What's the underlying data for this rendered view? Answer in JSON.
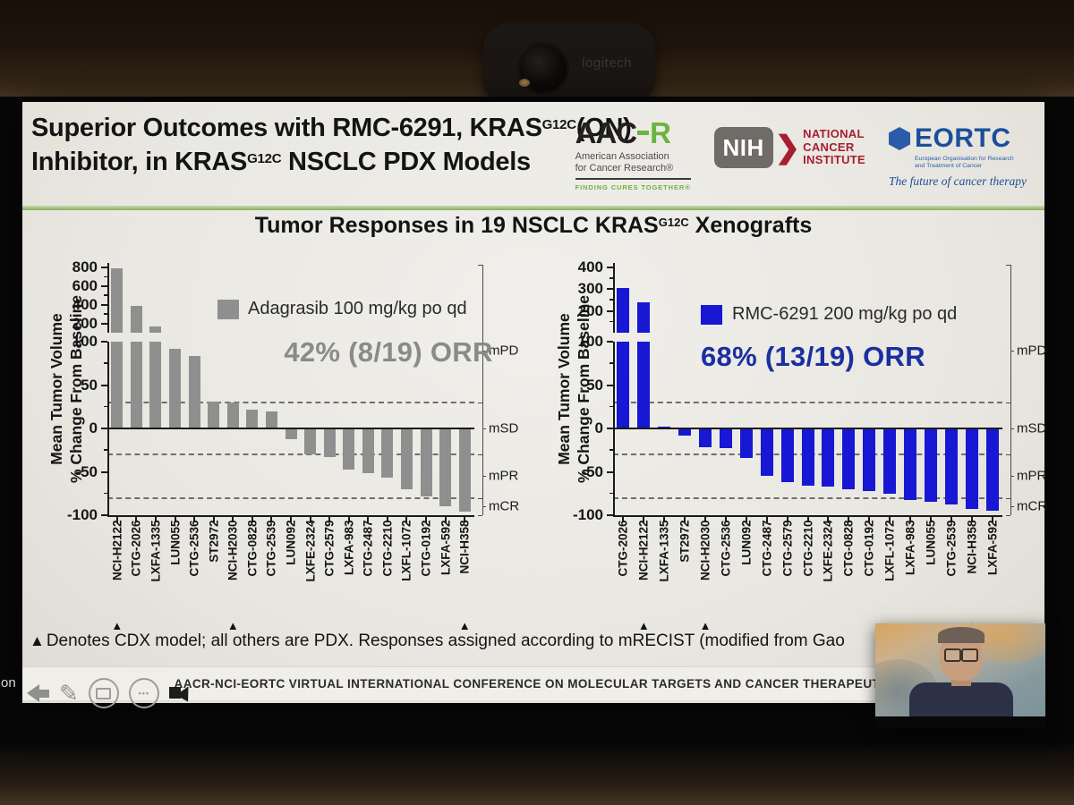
{
  "screen": {
    "edge_text": "on"
  },
  "webcam": {
    "brand": "logitech"
  },
  "slide": {
    "title": {
      "t1": "Superior Outcomes with RMC-6291, KRAS",
      "s1": "G12C",
      "t2": "(ON) Inhibitor, in KRAS",
      "s2": "G12C",
      "t3": " NSCLC PDX Models"
    },
    "chart_title": {
      "t1": "Tumor Responses in 19 NSCLC KRAS",
      "s1": "G12C",
      "t2": " Xenografts"
    },
    "footnote_marker": "▲",
    "footnote": "Denotes CDX model; all others are PDX. Responses assigned according to mRECIST (modified from Gao",
    "footer": "AACR-NCI-EORTC VIRTUAL INTERNATIONAL CONFERENCE ON MOLECULAR TARGETS AND CANCER THERAPEUTIC"
  },
  "logos": {
    "aacr": {
      "word_black": "AAC",
      "word_green": "R",
      "line1": "American Association",
      "line2": "for Cancer Research®",
      "tagline": "FINDING CURES TOGETHER®",
      "green": "#6cb33f"
    },
    "nih": {
      "abbr": "NIH",
      "chevron": "❯",
      "line1": "NATIONAL",
      "line2": "CANCER",
      "line3": "INSTITUTE",
      "red": "#a61e30"
    },
    "eortc": {
      "name": "EORTC",
      "sub1": "European Organisation for Research",
      "sub2": "and Treatment of Cancer",
      "tagline": "The future of cancer therapy",
      "blue": "#1b4f9c"
    }
  },
  "chart_data": [
    {
      "type": "bar",
      "legend": "Adagrasib 100 mg/kg po qd",
      "orr_text": "42% (8/19) ORR",
      "bar_color": "#8f8f8f",
      "orr_color": "#8a8a8a",
      "ylabel_line1": "Mean Tumor Volume",
      "ylabel_line2": "% Change From Baseline",
      "categories": [
        "NCI-H2122",
        "CTG-2026",
        "LXFA-1335",
        "LUN055",
        "CTG-2536",
        "ST2972",
        "NCI-H2030",
        "CTG-0828",
        "CTG-2539",
        "LUN092",
        "LXFE-2324",
        "CTG-2579",
        "LXFA-983",
        "CTG-2487",
        "CTG-2210",
        "LXFL-1072",
        "CTG-0192",
        "LXFA-592",
        "NCI-H358"
      ],
      "values": [
        790,
        390,
        170,
        92,
        83,
        31,
        30,
        22,
        20,
        -12,
        -30,
        -33,
        -47,
        -52,
        -57,
        -70,
        -78,
        -90,
        -96
      ],
      "cdx_indices": [
        0,
        6,
        18
      ],
      "upper_ticks": [
        800,
        600,
        400,
        200
      ],
      "minor_upper": [
        700,
        500,
        300
      ],
      "lower_ticks": [
        100,
        50,
        0,
        -50,
        -100
      ],
      "minor_lower": [
        75,
        25,
        -25,
        -75
      ],
      "upper_range": [
        100,
        850
      ],
      "ylim_lower": [
        -100,
        100
      ],
      "thresholds": [
        30,
        -30,
        -80
      ],
      "response_labels": [
        {
          "label": "mPD",
          "at": 90
        },
        {
          "label": "mSD",
          "at": 0
        },
        {
          "label": "mPR",
          "at": -55
        },
        {
          "label": "mCR",
          "at": -90
        }
      ]
    },
    {
      "type": "bar",
      "legend": "RMC-6291 200 mg/kg po qd",
      "orr_text": "68% (13/19) ORR",
      "bar_color": "#1717d4",
      "orr_color": "#1b2fa0",
      "ylabel_line1": "Mean Tumor Volume",
      "ylabel_line2": "% Change From Baseline",
      "categories": [
        "CTG-2026",
        "NCI-H2122",
        "LXFA-1335",
        "ST2972",
        "NCI-H2030",
        "CTG-2536",
        "LUN092",
        "CTG-2487",
        "CTG-2579",
        "CTG-2210",
        "LXFE-2324",
        "CTG-0828",
        "CTG-0192",
        "LXFL-1072",
        "LXFA-983",
        "LUN055",
        "CTG-2539",
        "NCI-H358",
        "LXFA-592"
      ],
      "values": [
        305,
        240,
        2,
        -8,
        -22,
        -23,
        -34,
        -55,
        -62,
        -66,
        -67,
        -70,
        -72,
        -75,
        -82,
        -85,
        -88,
        -93,
        -95
      ],
      "cdx_indices": [
        1,
        4,
        17
      ],
      "upper_ticks": [
        400,
        300,
        200
      ],
      "minor_upper": [
        350,
        250,
        150
      ],
      "lower_ticks": [
        100,
        50,
        0,
        -50,
        -100
      ],
      "minor_lower": [
        75,
        25,
        -25,
        -75
      ],
      "upper_range": [
        100,
        420
      ],
      "ylim_lower": [
        -100,
        100
      ],
      "thresholds": [
        30,
        -30,
        -80
      ],
      "response_labels": [
        {
          "label": "mPD",
          "at": 90
        },
        {
          "label": "mSD",
          "at": 0
        },
        {
          "label": "mPR",
          "at": -55
        },
        {
          "label": "mCR",
          "at": -90
        }
      ]
    }
  ],
  "toolbar": {
    "icons": [
      "back-arrow",
      "pen",
      "slide-navigator",
      "more-options",
      "cursor"
    ],
    "dots": "•••"
  }
}
